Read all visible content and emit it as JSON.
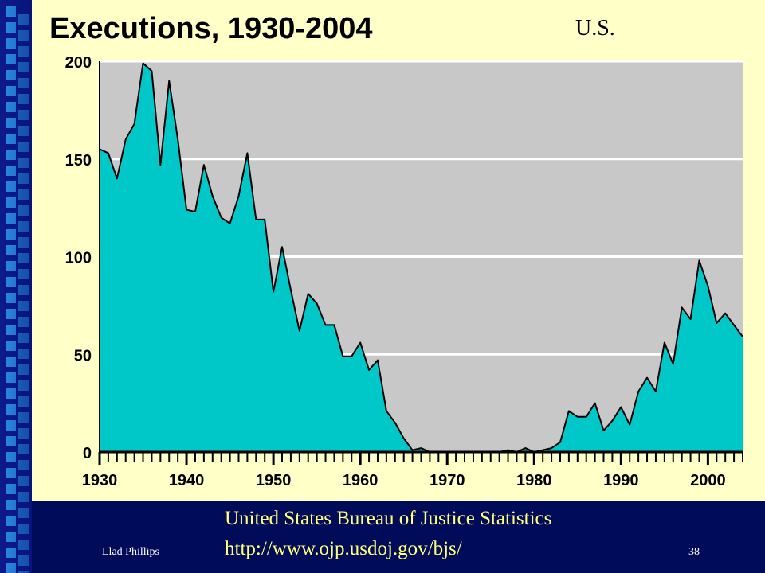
{
  "slide": {
    "corner_label": "U.S.",
    "source_name": "United States Bureau of Justice Statistics",
    "source_url": "http://www.ojp.usdoj.gov/bjs/",
    "author": "Llad Phillips",
    "page_number": "38"
  },
  "colors": {
    "slide_bg": "#ffffc8",
    "plot_bg": "#c8c8c8",
    "area_fill": "#00c8c8",
    "outline": "#000000",
    "gridline": "#ffffff",
    "frame_bg": "#000b5a",
    "source_text": "#ffff7a"
  },
  "chart_data": {
    "type": "area",
    "title": "Executions, 1930-2004",
    "xlabel": "",
    "ylabel": "",
    "x_start": 1930,
    "x_end": 2004,
    "xlim": [
      1930,
      2004
    ],
    "ylim": [
      0,
      200
    ],
    "y_ticks": [
      0,
      50,
      100,
      150,
      200
    ],
    "x_tick_labels": [
      1930,
      1940,
      1950,
      1960,
      1970,
      1980,
      1990,
      2000
    ],
    "grid": true,
    "legend": "none",
    "x": [
      1930,
      1931,
      1932,
      1933,
      1934,
      1935,
      1936,
      1937,
      1938,
      1939,
      1940,
      1941,
      1942,
      1943,
      1944,
      1945,
      1946,
      1947,
      1948,
      1949,
      1950,
      1951,
      1952,
      1953,
      1954,
      1955,
      1956,
      1957,
      1958,
      1959,
      1960,
      1961,
      1962,
      1963,
      1964,
      1965,
      1966,
      1967,
      1968,
      1969,
      1970,
      1971,
      1972,
      1973,
      1974,
      1975,
      1976,
      1977,
      1978,
      1979,
      1980,
      1981,
      1982,
      1983,
      1984,
      1985,
      1986,
      1987,
      1988,
      1989,
      1990,
      1991,
      1992,
      1993,
      1994,
      1995,
      1996,
      1997,
      1998,
      1999,
      2000,
      2001,
      2002,
      2003,
      2004
    ],
    "y": [
      155,
      153,
      140,
      160,
      168,
      199,
      195,
      147,
      190,
      160,
      124,
      123,
      147,
      131,
      120,
      117,
      131,
      153,
      119,
      119,
      82,
      105,
      83,
      62,
      81,
      76,
      65,
      65,
      49,
      49,
      56,
      42,
      47,
      21,
      15,
      7,
      1,
      2,
      0,
      0,
      0,
      0,
      0,
      0,
      0,
      0,
      0,
      1,
      0,
      2,
      0,
      1,
      2,
      5,
      21,
      18,
      18,
      25,
      11,
      16,
      23,
      14,
      31,
      38,
      31,
      56,
      45,
      74,
      68,
      98,
      85,
      66,
      71,
      65,
      59
    ]
  }
}
